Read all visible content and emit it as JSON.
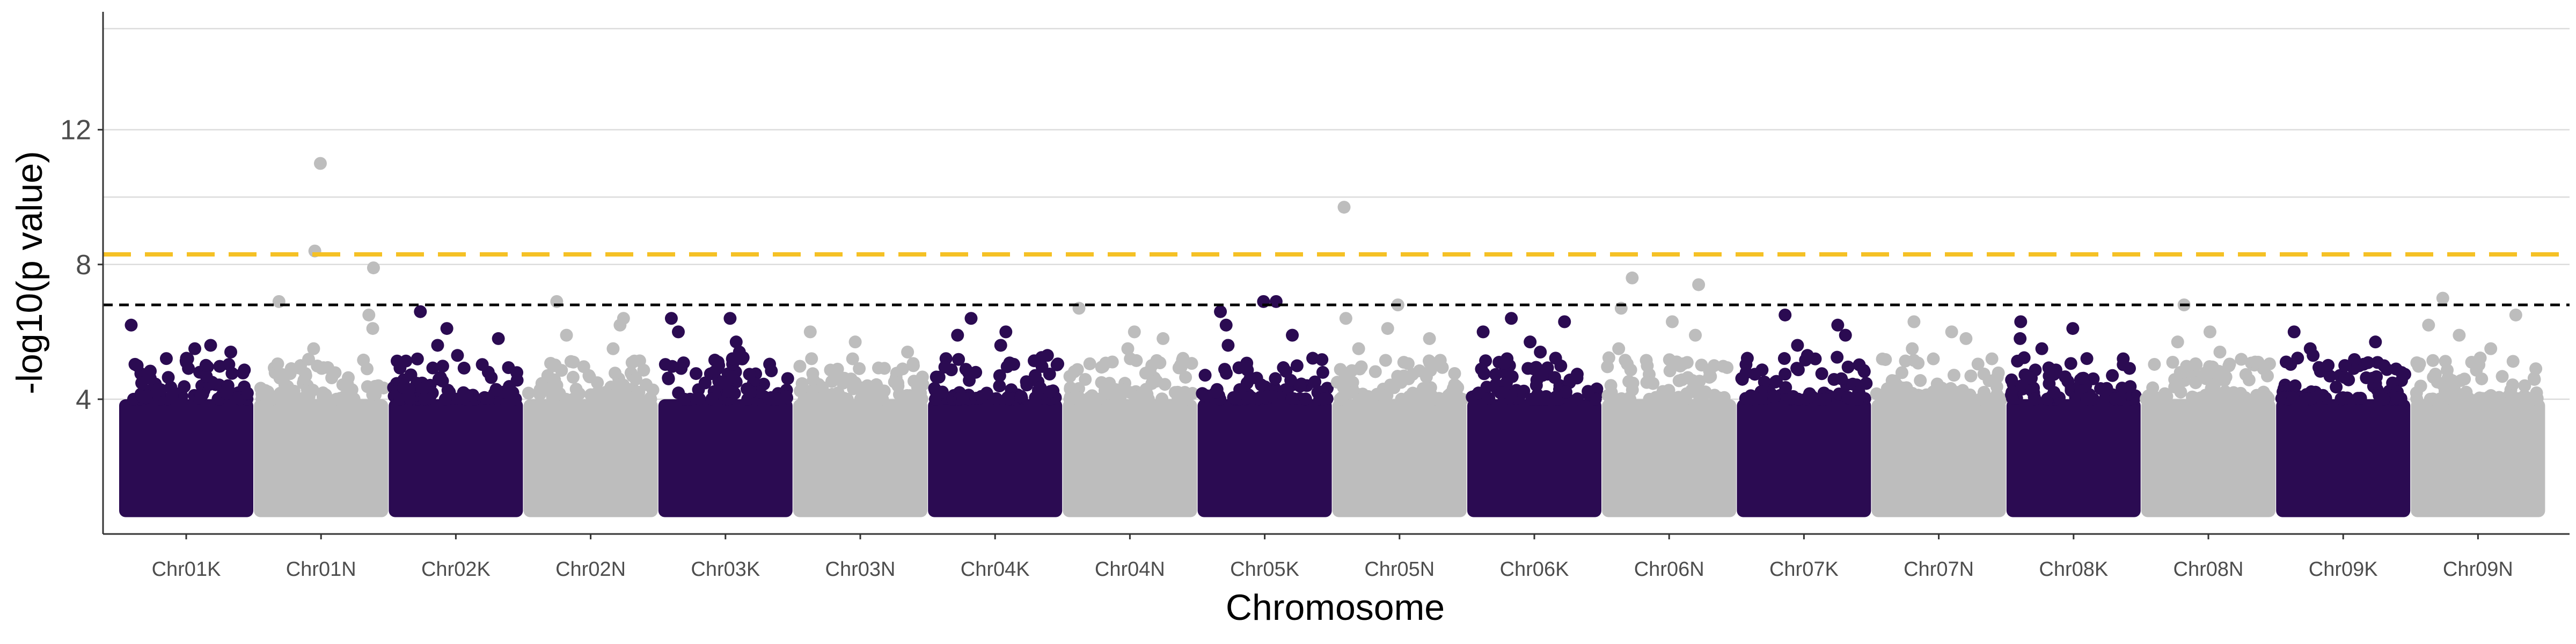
{
  "chart_data": {
    "type": "scatter",
    "subtype": "manhattan",
    "title": "",
    "xlabel": "Chromosome",
    "ylabel": "-log10(p value)",
    "ylim": [
      0,
      15.5
    ],
    "yticks": [
      4,
      8,
      12
    ],
    "grid": "major y only",
    "colors": {
      "odd": "#2b0b52",
      "even": "#bdbdbd",
      "threshold_upper": "#f5c125",
      "threshold_lower": "#000000",
      "grid": "#dcdcdc",
      "axis": "#333333"
    },
    "thresholds": [
      {
        "name": "bonferroni",
        "value": 8.3,
        "style": "long-dash",
        "color": "#f5c125"
      },
      {
        "name": "suggestive",
        "value": 6.8,
        "style": "short-dash",
        "color": "#000000"
      }
    ],
    "categories": [
      "Chr01K",
      "Chr01N",
      "Chr02K",
      "Chr02N",
      "Chr03K",
      "Chr03N",
      "Chr04K",
      "Chr04N",
      "Chr05K",
      "Chr05N",
      "Chr06K",
      "Chr06N",
      "Chr07K",
      "Chr07N",
      "Chr08K",
      "Chr08N",
      "Chr09K",
      "Chr09N"
    ],
    "series": [
      {
        "chromosome": "Chr01K",
        "color_group": "odd",
        "dense_band": [
          0.5,
          4.0
        ],
        "peak_values": [
          6.2,
          5.6,
          5.4,
          5.2,
          5.5
        ]
      },
      {
        "chromosome": "Chr01N",
        "color_group": "even",
        "dense_band": [
          0.5,
          4.0
        ],
        "peak_values": [
          11.0,
          8.4,
          7.9,
          6.9,
          6.5,
          6.1,
          5.5
        ]
      },
      {
        "chromosome": "Chr02K",
        "color_group": "odd",
        "dense_band": [
          0.5,
          4.0
        ],
        "peak_values": [
          6.6,
          6.1,
          5.8,
          5.6,
          5.3
        ]
      },
      {
        "chromosome": "Chr02N",
        "color_group": "even",
        "dense_band": [
          0.5,
          4.0
        ],
        "peak_values": [
          6.9,
          6.4,
          6.2,
          5.9,
          5.5
        ]
      },
      {
        "chromosome": "Chr03K",
        "color_group": "odd",
        "dense_band": [
          0.5,
          4.0
        ],
        "peak_values": [
          6.4,
          6.4,
          6.0,
          5.7,
          5.4
        ]
      },
      {
        "chromosome": "Chr03N",
        "color_group": "even",
        "dense_band": [
          0.5,
          4.0
        ],
        "peak_values": [
          6.0,
          5.7,
          5.4,
          5.2,
          4.9
        ]
      },
      {
        "chromosome": "Chr04K",
        "color_group": "odd",
        "dense_band": [
          0.5,
          4.0
        ],
        "peak_values": [
          6.4,
          6.0,
          5.9,
          5.6,
          5.3
        ]
      },
      {
        "chromosome": "Chr04N",
        "color_group": "even",
        "dense_band": [
          0.5,
          4.0
        ],
        "peak_values": [
          6.7,
          6.0,
          5.8,
          5.5,
          5.2
        ]
      },
      {
        "chromosome": "Chr05K",
        "color_group": "odd",
        "dense_band": [
          0.5,
          4.0
        ],
        "peak_values": [
          6.9,
          6.9,
          6.6,
          6.2,
          5.9,
          5.6
        ]
      },
      {
        "chromosome": "Chr05N",
        "color_group": "even",
        "dense_band": [
          0.5,
          4.0
        ],
        "peak_values": [
          9.7,
          6.8,
          6.4,
          6.1,
          5.8,
          5.5
        ]
      },
      {
        "chromosome": "Chr06K",
        "color_group": "odd",
        "dense_band": [
          0.5,
          4.0
        ],
        "peak_values": [
          6.4,
          6.3,
          6.0,
          5.7,
          5.4
        ]
      },
      {
        "chromosome": "Chr06N",
        "color_group": "even",
        "dense_band": [
          0.5,
          4.0
        ],
        "peak_values": [
          7.6,
          7.4,
          6.7,
          6.3,
          5.9,
          5.5
        ]
      },
      {
        "chromosome": "Chr07K",
        "color_group": "odd",
        "dense_band": [
          0.5,
          4.0
        ],
        "peak_values": [
          6.5,
          6.2,
          5.9,
          5.6,
          5.3
        ]
      },
      {
        "chromosome": "Chr07N",
        "color_group": "even",
        "dense_band": [
          0.5,
          4.0
        ],
        "peak_values": [
          6.3,
          6.0,
          5.8,
          5.5,
          5.2
        ]
      },
      {
        "chromosome": "Chr08K",
        "color_group": "odd",
        "dense_band": [
          0.5,
          4.0
        ],
        "peak_values": [
          6.3,
          6.1,
          5.8,
          5.5,
          5.2
        ]
      },
      {
        "chromosome": "Chr08N",
        "color_group": "even",
        "dense_band": [
          0.5,
          4.0
        ],
        "peak_values": [
          6.8,
          6.0,
          5.7,
          5.4,
          5.1
        ]
      },
      {
        "chromosome": "Chr09K",
        "color_group": "odd",
        "dense_band": [
          0.5,
          4.0
        ],
        "peak_values": [
          6.0,
          5.7,
          5.5,
          5.3,
          5.0
        ]
      },
      {
        "chromosome": "Chr09N",
        "color_group": "even",
        "dense_band": [
          0.5,
          4.0
        ],
        "peak_values": [
          7.0,
          6.5,
          6.2,
          5.9,
          5.5
        ]
      }
    ]
  }
}
